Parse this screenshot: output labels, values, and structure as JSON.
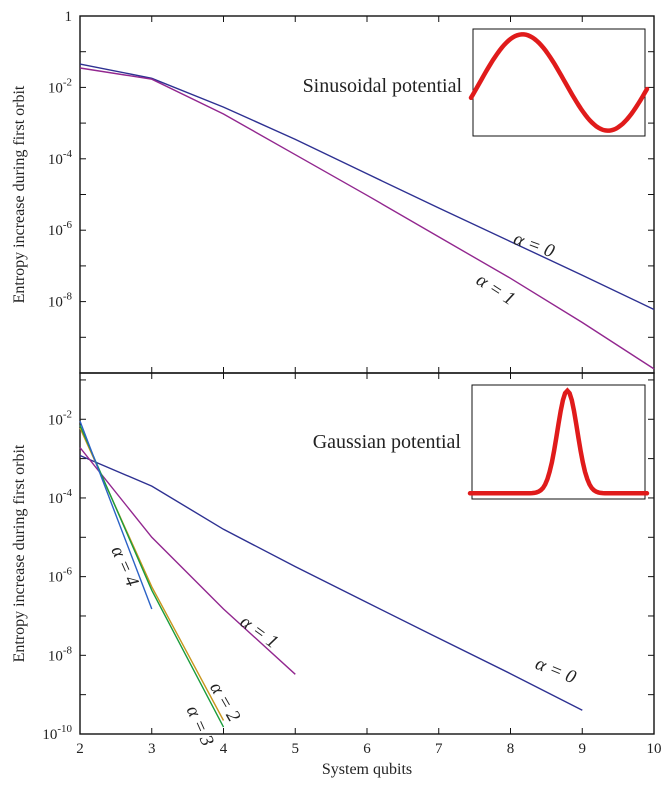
{
  "chart_data": [
    {
      "type": "line",
      "scale": "log-y",
      "ylabel": "Entropy increase during first orbit",
      "xlim": [
        2,
        10
      ],
      "ylim": [
        1e-10,
        1
      ],
      "x_ticks": [
        2,
        3,
        4,
        5,
        6,
        7,
        8,
        9,
        10
      ],
      "y_tick_labels": [
        {
          "value": 1,
          "base": "1",
          "exp": ""
        },
        {
          "value": 0.01,
          "base": "10",
          "exp": "-2"
        },
        {
          "value": 0.0001,
          "base": "10",
          "exp": "-4"
        },
        {
          "value": 1e-06,
          "base": "10",
          "exp": "-6"
        },
        {
          "value": 1e-08,
          "base": "10",
          "exp": "-8"
        }
      ],
      "inset_label": "Sinusoidal potential",
      "inset_shape": "sinusoid",
      "series": [
        {
          "label": "α = 0",
          "color": "#2e3192",
          "x": [
            2,
            3,
            4,
            5,
            6,
            7,
            8,
            9,
            10
          ],
          "y": [
            0.045,
            0.018,
            0.0028,
            0.00035,
            3.8e-05,
            4.2e-06,
            4.8e-07,
            5.5e-08,
            6e-09
          ]
        },
        {
          "label": "α = 1",
          "color": "#92278f",
          "x": [
            2,
            3,
            4,
            5,
            6,
            7,
            8,
            9,
            10
          ],
          "y": [
            0.035,
            0.017,
            0.0018,
            0.00013,
            9.5e-06,
            6.5e-07,
            4.5e-08,
            2.6e-09,
            1.3e-10
          ]
        }
      ]
    },
    {
      "type": "line",
      "scale": "log-y",
      "xlabel": "System qubits",
      "ylabel": "Entropy increase during first orbit",
      "xlim": [
        2,
        10
      ],
      "ylim": [
        1e-10,
        0.15
      ],
      "x_ticks": [
        2,
        3,
        4,
        5,
        6,
        7,
        8,
        9,
        10
      ],
      "y_tick_labels": [
        {
          "value": 0.01,
          "base": "10",
          "exp": "-2"
        },
        {
          "value": 0.0001,
          "base": "10",
          "exp": "-4"
        },
        {
          "value": 1e-06,
          "base": "10",
          "exp": "-6"
        },
        {
          "value": 1e-08,
          "base": "10",
          "exp": "-8"
        },
        {
          "value": 1e-10,
          "base": "10",
          "exp": "-10"
        }
      ],
      "inset_label": "Gaussian potential",
      "inset_shape": "gaussian",
      "series": [
        {
          "label": "α = 0",
          "color": "#2e3192",
          "x": [
            2,
            3,
            4,
            5,
            6,
            7,
            8,
            9
          ],
          "y": [
            0.0012,
            0.0002,
            1.6e-05,
            1.8e-06,
            2.2e-07,
            2.7e-08,
            3.4e-09,
            4e-10
          ]
        },
        {
          "label": "α = 1",
          "color": "#92278f",
          "x": [
            2,
            3,
            4,
            5
          ],
          "y": [
            0.0019,
            1e-05,
            1.5e-07,
            3.3e-09
          ]
        },
        {
          "label": "α = 2",
          "color": "#c8961e",
          "x": [
            2,
            3,
            4
          ],
          "y": [
            0.006,
            5.5e-07,
            2.2e-10
          ]
        },
        {
          "label": "α = 3",
          "color": "#1a9c3c",
          "x": [
            2,
            3,
            4
          ],
          "y": [
            0.007,
            4.5e-07,
            1.5e-10
          ]
        },
        {
          "label": "α = 4",
          "color": "#2b62c6",
          "x": [
            2,
            3
          ],
          "y": [
            0.009,
            1.5e-07
          ]
        }
      ]
    }
  ]
}
